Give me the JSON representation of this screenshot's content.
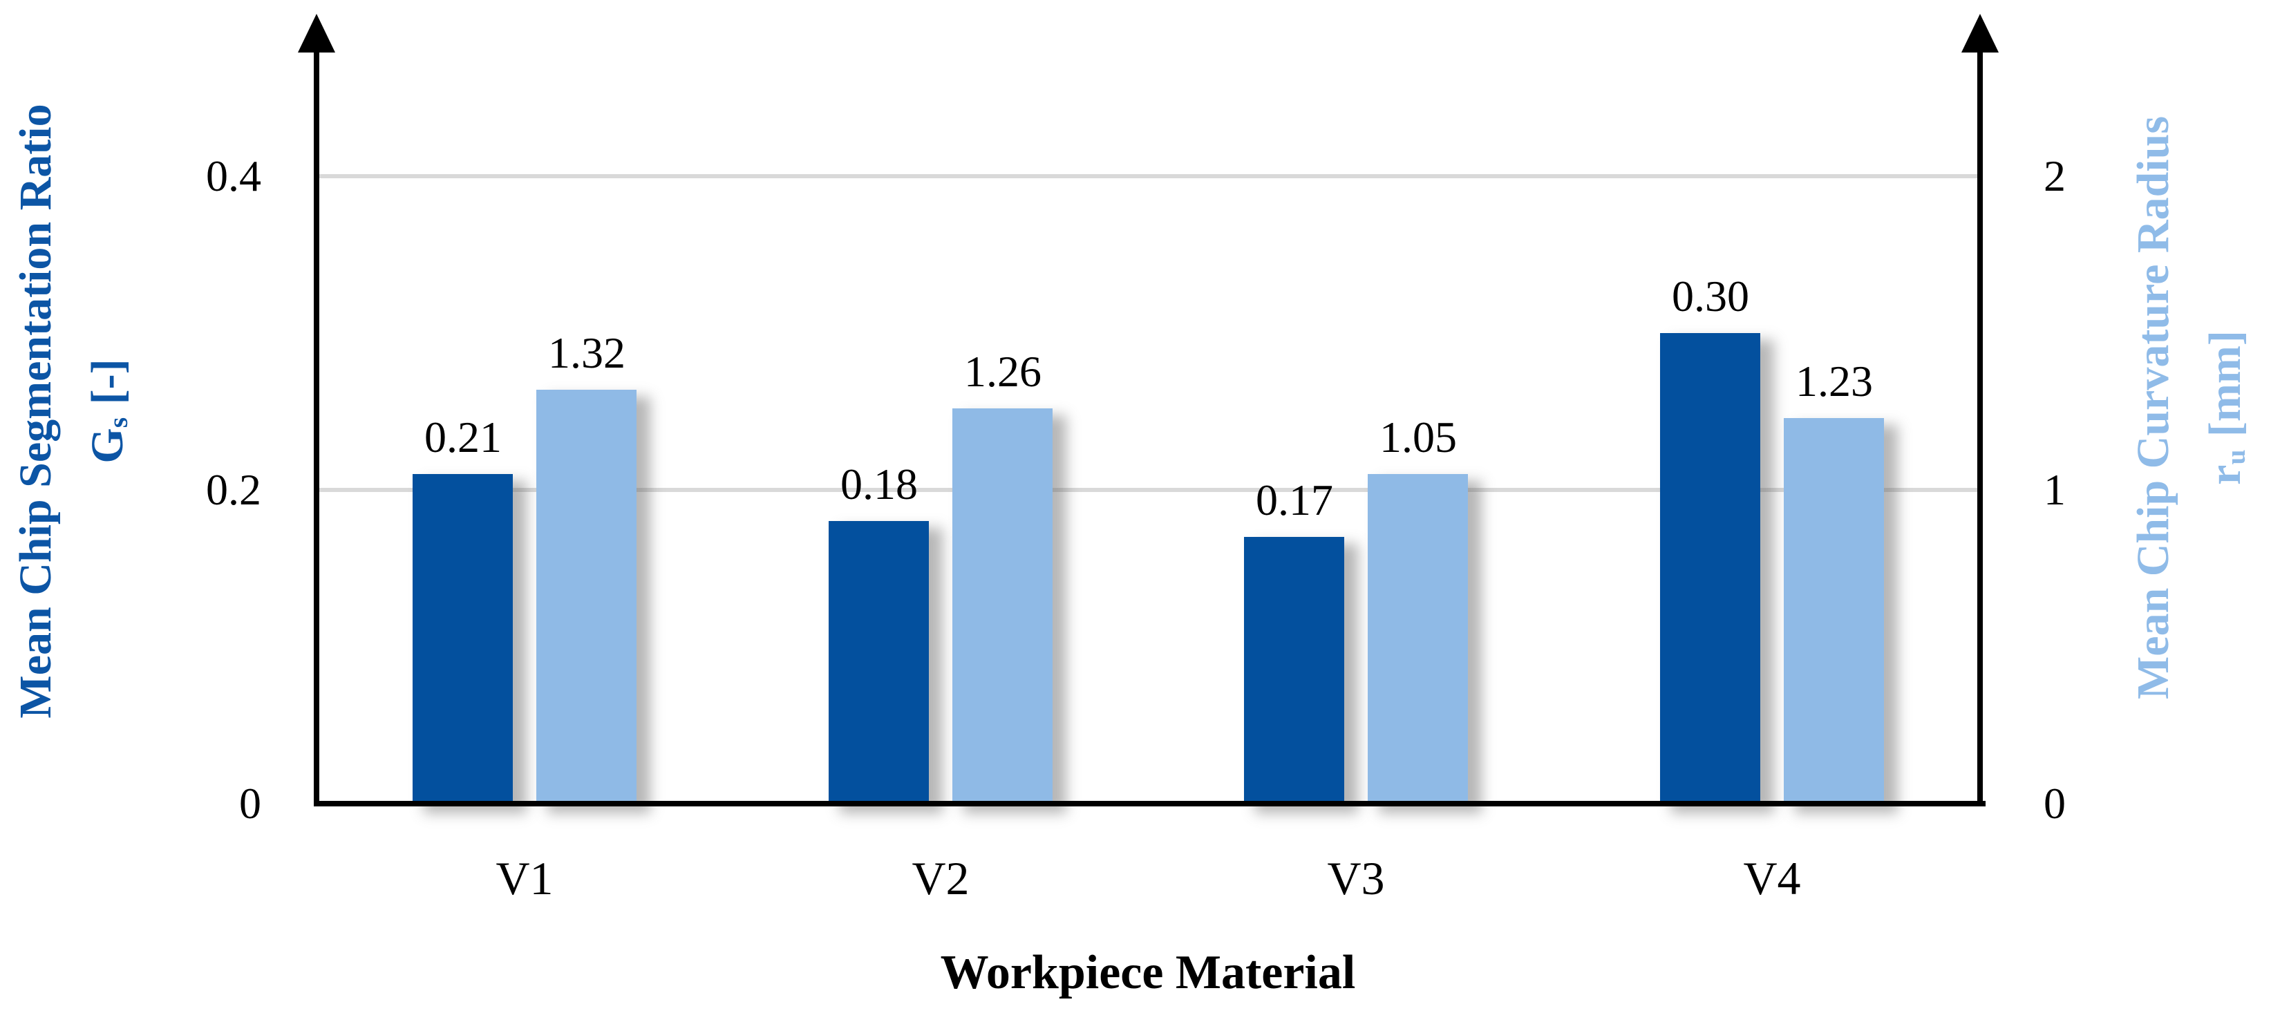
{
  "chart_data": {
    "type": "bar",
    "categories": [
      "V1",
      "V2",
      "V3",
      "V4"
    ],
    "series": [
      {
        "name": "Mean Chip Segmentation Ratio Gs [-]",
        "axis": "left",
        "color": "#03509E",
        "values": [
          0.21,
          0.18,
          0.17,
          0.3
        ],
        "labels": [
          "0.21",
          "0.18",
          "0.17",
          "0.30"
        ]
      },
      {
        "name": "Mean Chip Curvature Radius ru [mm]",
        "axis": "right",
        "color": "#8FBAE6",
        "values": [
          1.32,
          1.26,
          1.05,
          1.23
        ],
        "labels": [
          "1.32",
          "1.26",
          "1.05",
          "1.23"
        ]
      }
    ],
    "xlabel": "Workpiece Material",
    "left_axis": {
      "title": "Mean Chip Segmentation Ratio",
      "symbol": "G",
      "symbol_sub": "s",
      "unit": "[-]",
      "color": "#0C55A5",
      "range": [
        0,
        0.5
      ],
      "ticks": [
        {
          "label": "0.4",
          "value": 0.4
        },
        {
          "label": "0.2",
          "value": 0.2
        },
        {
          "label": "0",
          "value": 0
        }
      ],
      "grid_values": [
        0.4,
        0.2
      ]
    },
    "right_axis": {
      "title": "Mean Chip Curvature Radius",
      "symbol": "r",
      "symbol_sub": "u",
      "unit": "[mm]",
      "color": "#8FBBE8",
      "range": [
        0,
        2.5
      ],
      "ticks": [
        {
          "label": "2",
          "value": 2
        },
        {
          "label": "1",
          "value": 1
        },
        {
          "label": "0",
          "value": 0
        }
      ]
    },
    "gridline_color": "#D9D9D9",
    "grid": "horizontal",
    "legend": "none"
  }
}
